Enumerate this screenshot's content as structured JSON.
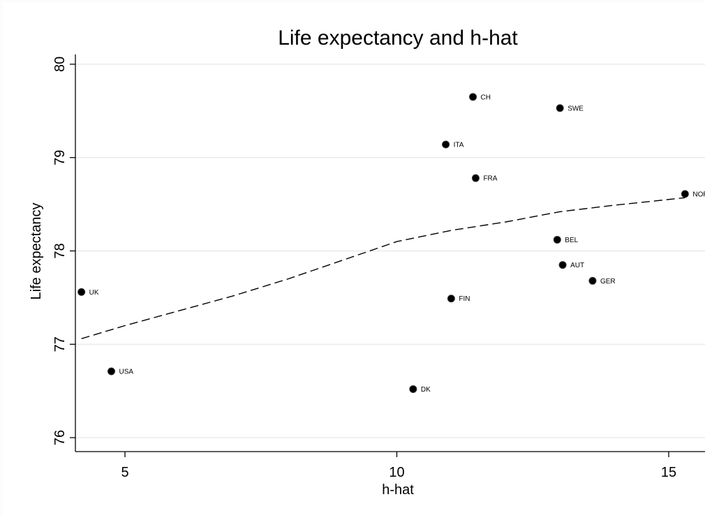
{
  "chart_data": {
    "type": "scatter",
    "title": "Life expectancy and h-hat",
    "xlabel": "h-hat",
    "ylabel": "Life expectancy",
    "xlim": [
      4.1,
      15.5
    ],
    "ylim": [
      76,
      80.1
    ],
    "xticks": [
      5,
      10,
      15
    ],
    "yticks": [
      76,
      77,
      78,
      79,
      80
    ],
    "grid": true,
    "points": [
      {
        "label": "CH",
        "x": 11.4,
        "y": 79.65
      },
      {
        "label": "SWE",
        "x": 13.0,
        "y": 79.53
      },
      {
        "label": "ITA",
        "x": 10.9,
        "y": 79.14
      },
      {
        "label": "FRA",
        "x": 11.45,
        "y": 78.78
      },
      {
        "label": "NOR",
        "x": 15.3,
        "y": 78.61
      },
      {
        "label": "BEL",
        "x": 12.95,
        "y": 78.12
      },
      {
        "label": "AUT",
        "x": 13.05,
        "y": 77.85
      },
      {
        "label": "GER",
        "x": 13.6,
        "y": 77.68
      },
      {
        "label": "UK",
        "x": 4.2,
        "y": 77.56
      },
      {
        "label": "FIN",
        "x": 11.0,
        "y": 77.49
      },
      {
        "label": "USA",
        "x": 4.75,
        "y": 76.71
      },
      {
        "label": "DK",
        "x": 10.3,
        "y": 76.52
      }
    ],
    "fit_line": {
      "style": "dashed",
      "x": [
        4.2,
        5.0,
        6.0,
        7.0,
        8.0,
        9.0,
        10.0,
        11.0,
        12.0,
        13.0,
        14.0,
        15.3
      ],
      "y": [
        77.06,
        77.2,
        77.36,
        77.52,
        77.7,
        77.9,
        78.1,
        78.22,
        78.31,
        78.42,
        78.49,
        78.57
      ]
    }
  }
}
